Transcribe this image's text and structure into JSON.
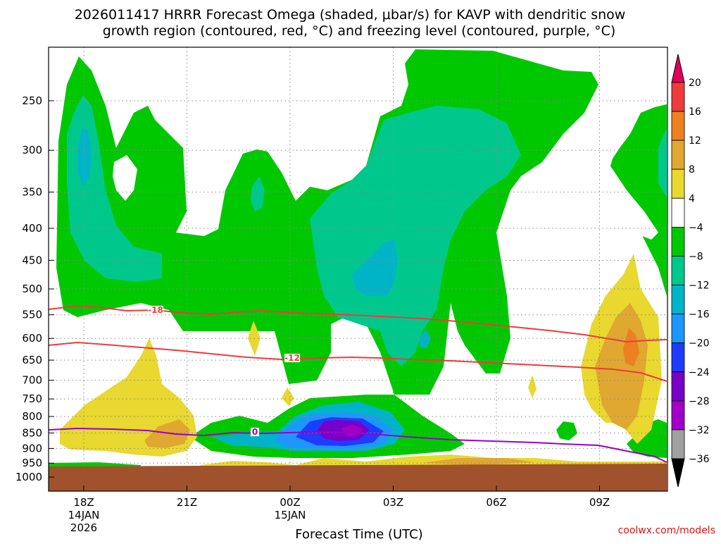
{
  "chart_data": {
    "type": "heatmap",
    "title_line1": "2026011417 HRRR Forecast Omega (shaded, μbar/s) for KAVP with dendritic snow",
    "title_line2": "growth region (contoured, red, °C) and freezing level (contoured, purple, °C)",
    "xlabel": "Forecast Time (UTC)",
    "credit": "coolwx.com/models",
    "x_ticks": [
      {
        "hour": 0,
        "label": "18Z",
        "sub1": "14JAN",
        "sub2": "2026"
      },
      {
        "hour": 3,
        "label": "21Z",
        "sub1": "",
        "sub2": ""
      },
      {
        "hour": 6,
        "label": "00Z",
        "sub1": "15JAN",
        "sub2": ""
      },
      {
        "hour": 9,
        "label": "03Z",
        "sub1": "",
        "sub2": ""
      },
      {
        "hour": 12,
        "label": "06Z",
        "sub1": "",
        "sub2": ""
      },
      {
        "hour": 15,
        "label": "09Z",
        "sub1": "",
        "sub2": ""
      }
    ],
    "y_ticks": [
      250,
      300,
      350,
      400,
      450,
      500,
      550,
      600,
      650,
      700,
      750,
      800,
      850,
      900,
      950,
      1000
    ],
    "colorbar": {
      "labels": [
        "20",
        "16",
        "12",
        "8",
        "4",
        "−4",
        "−8",
        "−12",
        "−16",
        "−20",
        "−24",
        "−28",
        "−32",
        "−36"
      ],
      "colors": [
        "#e0005a",
        "#ee3b3b",
        "#ee8020",
        "#e0a830",
        "#e8d830",
        "#ffffff",
        "#00c800",
        "#00c88c",
        "#00b4c8",
        "#1e96ff",
        "#1e3cff",
        "#7800c8",
        "#a000c8",
        "#a0a0a0",
        "#000000"
      ]
    },
    "contours": [
      {
        "label": "-18",
        "color": "#ee3b3b"
      },
      {
        "label": "-12",
        "color": "#ee3b3b"
      },
      {
        "label": "0",
        "color": "#9a00c8"
      }
    ]
  }
}
